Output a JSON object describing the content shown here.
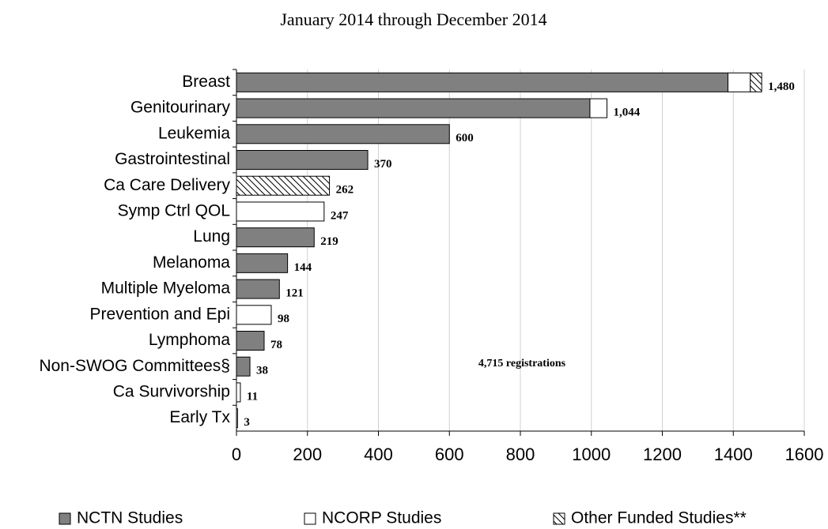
{
  "chart_data": {
    "type": "stacked-barh",
    "subtitle": "January 2014 through December 2014",
    "categories": [
      "Breast",
      "Genitourinary",
      "Leukemia",
      "Gastrointestinal",
      "Ca Care Delivery",
      "Symp Ctrl QOL",
      "Lung",
      "Melanoma",
      "Multiple Myeloma",
      "Prevention and Epi",
      "Lymphoma",
      "Non-SWOG Committees§",
      "Ca Survivorship",
      "Early Tx"
    ],
    "series": [
      {
        "name": "NCTN Studies",
        "color": "#808080",
        "values": [
          1385,
          996,
          600,
          370,
          0,
          0,
          219,
          144,
          121,
          0,
          78,
          38,
          0,
          0
        ]
      },
      {
        "name": "NCORP Studies",
        "color": "#ffffff",
        "values": [
          63,
          48,
          0,
          0,
          0,
          247,
          0,
          0,
          0,
          98,
          0,
          0,
          11,
          3
        ]
      },
      {
        "name": "Other Funded Studies**",
        "color": "#000000",
        "pattern": "hatch",
        "values": [
          32,
          0,
          0,
          0,
          262,
          0,
          0,
          0,
          0,
          0,
          0,
          0,
          0,
          0
        ]
      }
    ],
    "totals": [
      1480,
      1044,
      600,
      370,
      262,
      247,
      219,
      144,
      121,
      98,
      78,
      38,
      11,
      3
    ],
    "total_labels": [
      "1,480",
      "1,044",
      "600",
      "370",
      "262",
      "247",
      "219",
      "144",
      "121",
      "98",
      "78",
      "38",
      "11",
      "3"
    ],
    "annotation": "4,715 registrations",
    "xlim": [
      0,
      1600
    ],
    "xticks": [
      0,
      200,
      400,
      600,
      800,
      1000,
      1200,
      1400,
      1600
    ],
    "grid": true,
    "legend": "bottom"
  }
}
